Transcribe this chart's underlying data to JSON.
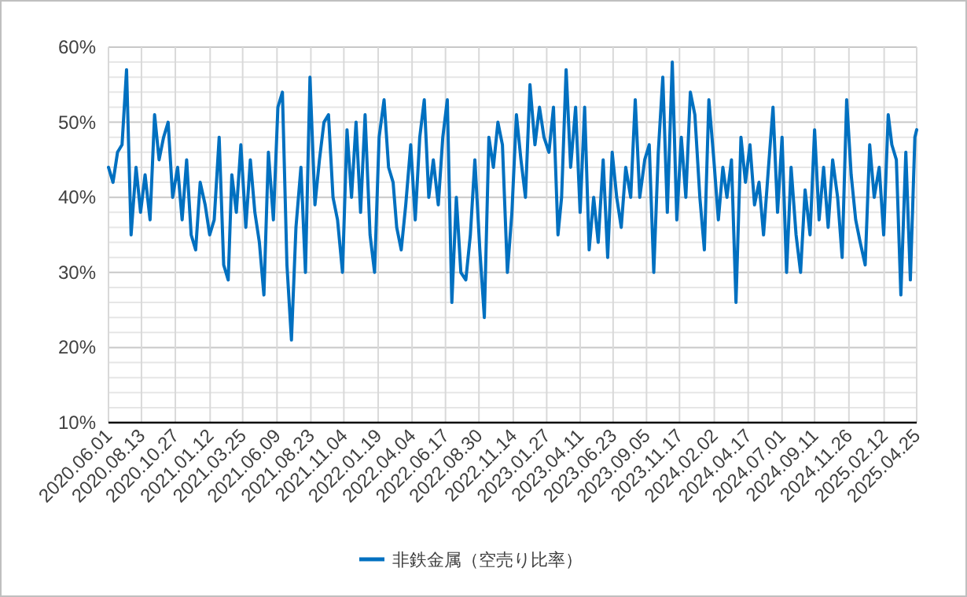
{
  "chart_data": {
    "type": "line",
    "legend": "bottom",
    "grid": true,
    "marker": "none",
    "line_style": "solid",
    "xlim": [
      "2020-06-01",
      "2025-04-25"
    ],
    "xticks": [
      {
        "value": "2020-06-01",
        "label": "2020.06.01"
      },
      {
        "value": "2020-08-13",
        "label": "2020.08.13"
      },
      {
        "value": "2020-10-27",
        "label": "2020.10.27"
      },
      {
        "value": "2021-01-12",
        "label": "2021.01.12"
      },
      {
        "value": "2021-03-25",
        "label": "2021.03.25"
      },
      {
        "value": "2021-06-09",
        "label": "2021.06.09"
      },
      {
        "value": "2021-08-23",
        "label": "2021.08.23"
      },
      {
        "value": "2021-11-04",
        "label": "2021.11.04"
      },
      {
        "value": "2022-01-19",
        "label": "2022.01.19"
      },
      {
        "value": "2022-04-04",
        "label": "2022.04.04"
      },
      {
        "value": "2022-06-17",
        "label": "2022.06.17"
      },
      {
        "value": "2022-08-30",
        "label": "2022.08.30"
      },
      {
        "value": "2022-11-14",
        "label": "2022.11.14"
      },
      {
        "value": "2023-01-27",
        "label": "2023.01.27"
      },
      {
        "value": "2023-04-11",
        "label": "2023.04.11"
      },
      {
        "value": "2023-06-23",
        "label": "2023.06.23"
      },
      {
        "value": "2023-09-05",
        "label": "2023.09.05"
      },
      {
        "value": "2023-11-17",
        "label": "2023.11.17"
      },
      {
        "value": "2024-02-02",
        "label": "2024.02.02"
      },
      {
        "value": "2024-04-17",
        "label": "2024.04.17"
      },
      {
        "value": "2024-07-01",
        "label": "2024.07.01"
      },
      {
        "value": "2024-09-11",
        "label": "2024.09.11"
      },
      {
        "value": "2024-11-26",
        "label": "2024.11.26"
      },
      {
        "value": "2025-02-12",
        "label": "2025.02.12"
      },
      {
        "value": "2025-04-25",
        "label": "2025.04.25"
      }
    ],
    "ylim": [
      10,
      60
    ],
    "yticks": [
      {
        "value": 10,
        "label": "10%"
      },
      {
        "value": 12,
        "label": null
      },
      {
        "value": 14,
        "label": null
      },
      {
        "value": 16,
        "label": null
      },
      {
        "value": 18,
        "label": null
      },
      {
        "value": 20,
        "label": "20%"
      },
      {
        "value": 22,
        "label": null
      },
      {
        "value": 24,
        "label": null
      },
      {
        "value": 26,
        "label": null
      },
      {
        "value": 28,
        "label": null
      },
      {
        "value": 30,
        "label": "30%"
      },
      {
        "value": 32,
        "label": null
      },
      {
        "value": 34,
        "label": null
      },
      {
        "value": 36,
        "label": null
      },
      {
        "value": 38,
        "label": null
      },
      {
        "value": 40,
        "label": "40%"
      },
      {
        "value": 42,
        "label": null
      },
      {
        "value": 44,
        "label": null
      },
      {
        "value": 46,
        "label": null
      },
      {
        "value": 48,
        "label": null
      },
      {
        "value": 50,
        "label": "50%"
      },
      {
        "value": 52,
        "label": null
      },
      {
        "value": 54,
        "label": null
      },
      {
        "value": 56,
        "label": null
      },
      {
        "value": 58,
        "label": null
      },
      {
        "value": 60,
        "label": "60%"
      }
    ],
    "x": [
      "2020-06-01",
      "2020-06-11",
      "2020-06-21",
      "2020-07-01",
      "2020-07-11",
      "2020-07-21",
      "2020-08-01",
      "2020-08-11",
      "2020-08-21",
      "2020-09-01",
      "2020-09-11",
      "2020-09-21",
      "2020-10-01",
      "2020-10-11",
      "2020-10-21",
      "2020-11-01",
      "2020-11-11",
      "2020-11-21",
      "2020-12-01",
      "2020-12-11",
      "2020-12-21",
      "2021-01-01",
      "2021-01-11",
      "2021-01-21",
      "2021-02-01",
      "2021-02-11",
      "2021-02-21",
      "2021-03-01",
      "2021-03-11",
      "2021-03-21",
      "2021-04-01",
      "2021-04-11",
      "2021-04-21",
      "2021-05-01",
      "2021-05-11",
      "2021-05-21",
      "2021-06-01",
      "2021-06-11",
      "2021-06-21",
      "2021-07-01",
      "2021-07-11",
      "2021-07-21",
      "2021-08-01",
      "2021-08-11",
      "2021-08-21",
      "2021-09-01",
      "2021-09-11",
      "2021-09-21",
      "2021-10-01",
      "2021-10-11",
      "2021-10-21",
      "2021-11-01",
      "2021-11-11",
      "2021-11-21",
      "2021-12-01",
      "2021-12-11",
      "2021-12-21",
      "2022-01-01",
      "2022-01-11",
      "2022-01-21",
      "2022-02-01",
      "2022-02-11",
      "2022-02-21",
      "2022-03-01",
      "2022-03-11",
      "2022-03-21",
      "2022-04-01",
      "2022-04-11",
      "2022-04-21",
      "2022-05-01",
      "2022-05-11",
      "2022-05-21",
      "2022-06-01",
      "2022-06-11",
      "2022-06-21",
      "2022-07-01",
      "2022-07-11",
      "2022-07-21",
      "2022-08-01",
      "2022-08-11",
      "2022-08-21",
      "2022-09-01",
      "2022-09-11",
      "2022-09-21",
      "2022-10-01",
      "2022-10-11",
      "2022-10-21",
      "2022-11-01",
      "2022-11-11",
      "2022-11-21",
      "2022-12-01",
      "2022-12-11",
      "2022-12-21",
      "2023-01-01",
      "2023-01-11",
      "2023-01-21",
      "2023-02-01",
      "2023-02-11",
      "2023-02-21",
      "2023-03-01",
      "2023-03-11",
      "2023-03-21",
      "2023-04-01",
      "2023-04-11",
      "2023-04-21",
      "2023-05-01",
      "2023-05-11",
      "2023-05-21",
      "2023-06-01",
      "2023-06-11",
      "2023-06-21",
      "2023-07-01",
      "2023-07-11",
      "2023-07-21",
      "2023-08-01",
      "2023-08-11",
      "2023-08-21",
      "2023-09-01",
      "2023-09-11",
      "2023-09-21",
      "2023-10-01",
      "2023-10-11",
      "2023-10-21",
      "2023-11-01",
      "2023-11-11",
      "2023-11-21",
      "2023-12-01",
      "2023-12-11",
      "2023-12-21",
      "2024-01-01",
      "2024-01-11",
      "2024-01-21",
      "2024-02-01",
      "2024-02-11",
      "2024-02-21",
      "2024-03-01",
      "2024-03-11",
      "2024-03-21",
      "2024-04-01",
      "2024-04-11",
      "2024-04-21",
      "2024-05-01",
      "2024-05-11",
      "2024-05-21",
      "2024-06-01",
      "2024-06-11",
      "2024-06-21",
      "2024-07-01",
      "2024-07-11",
      "2024-07-21",
      "2024-08-01",
      "2024-08-11",
      "2024-08-21",
      "2024-09-01",
      "2024-09-11",
      "2024-09-21",
      "2024-10-01",
      "2024-10-11",
      "2024-10-21",
      "2024-11-01",
      "2024-11-11",
      "2024-11-21",
      "2024-12-01",
      "2024-12-11",
      "2024-12-21",
      "2025-01-01",
      "2025-01-11",
      "2025-01-21",
      "2025-02-01",
      "2025-02-11",
      "2025-02-21",
      "2025-03-01",
      "2025-03-11",
      "2025-03-21",
      "2025-04-01",
      "2025-04-11",
      "2025-04-21",
      "2025-04-25"
    ],
    "series": [
      {
        "name": "非鉄金属（空売り比率）",
        "color": "#0070c0",
        "values": [
          44,
          42,
          46,
          47,
          57,
          35,
          44,
          38,
          43,
          37,
          51,
          45,
          48,
          50,
          40,
          44,
          37,
          45,
          35,
          33,
          42,
          39,
          35,
          37,
          48,
          31,
          29,
          43,
          38,
          47,
          36,
          45,
          38,
          34,
          27,
          46,
          37,
          52,
          54,
          31,
          21,
          36,
          44,
          30,
          56,
          39,
          45,
          50,
          51,
          40,
          37,
          30,
          49,
          40,
          50,
          38,
          51,
          35,
          30,
          48,
          53,
          44,
          42,
          36,
          33,
          39,
          47,
          37,
          48,
          53,
          40,
          45,
          39,
          48,
          53,
          26,
          40,
          30,
          29,
          35,
          45,
          33,
          24,
          48,
          44,
          50,
          47,
          30,
          38,
          51,
          45,
          40,
          55,
          47,
          52,
          48,
          46,
          52,
          35,
          40,
          57,
          44,
          52,
          38,
          52,
          33,
          40,
          34,
          45,
          32,
          46,
          40,
          36,
          44,
          40,
          53,
          40,
          45,
          47,
          30,
          46,
          56,
          38,
          58,
          37,
          48,
          40,
          54,
          51,
          40,
          33,
          53,
          45,
          37,
          44,
          40,
          45,
          26,
          48,
          42,
          47,
          39,
          42,
          35,
          44,
          52,
          38,
          48,
          30,
          44,
          35,
          30,
          41,
          35,
          49,
          37,
          44,
          36,
          45,
          40,
          32,
          53,
          43,
          37,
          34,
          31,
          47,
          40,
          44,
          35,
          51,
          47,
          45,
          27,
          46,
          29,
          48,
          49
        ]
      }
    ]
  }
}
